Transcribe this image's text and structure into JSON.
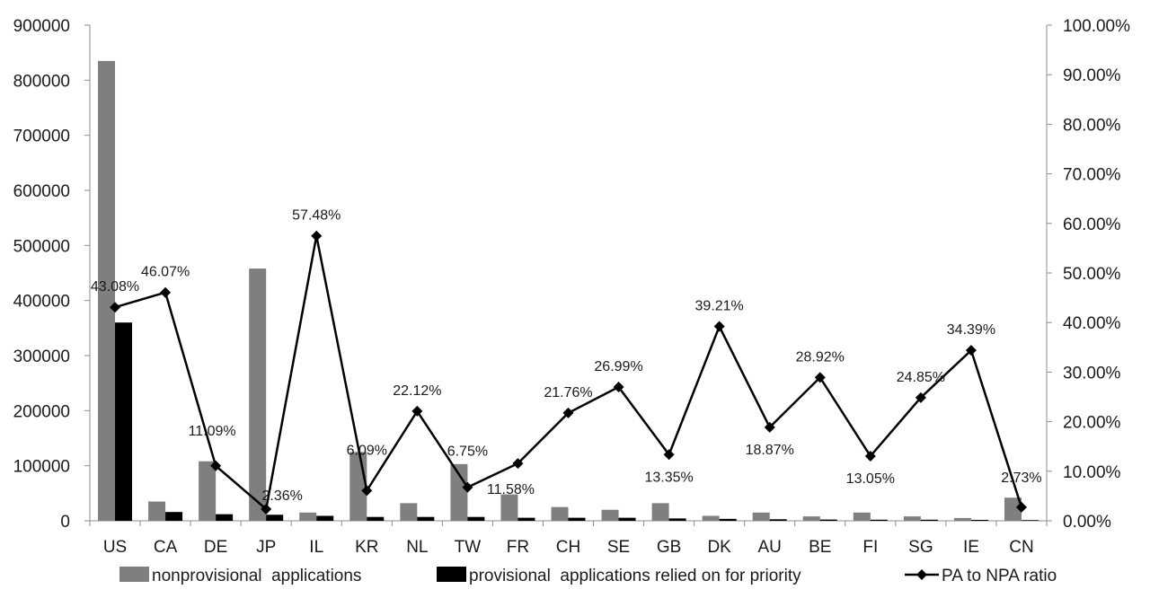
{
  "chart_data": {
    "type": "bar+line",
    "title": "",
    "categories": [
      "US",
      "CA",
      "DE",
      "JP",
      "IL",
      "KR",
      "NL",
      "TW",
      "FR",
      "CH",
      "SE",
      "GB",
      "DK",
      "AU",
      "BE",
      "FI",
      "SG",
      "IE",
      "CN"
    ],
    "series": [
      {
        "name": "nonprovisional applications",
        "type": "bar",
        "axis": "left",
        "color": "#7f7f7f",
        "values": [
          835000,
          35000,
          108000,
          458000,
          15000,
          125000,
          32000,
          103000,
          48000,
          25000,
          20000,
          32000,
          9000,
          15000,
          8000,
          15000,
          8000,
          5000,
          42000
        ]
      },
      {
        "name": "provisional applications relied on for priority",
        "type": "bar",
        "axis": "left",
        "color": "#000000",
        "values": [
          360000,
          16000,
          12000,
          11000,
          9000,
          7000,
          7000,
          7000,
          5500,
          5500,
          5500,
          4300,
          3500,
          2800,
          2300,
          2000,
          2000,
          1700,
          1200
        ]
      },
      {
        "name": "PA to NPA ratio",
        "type": "line",
        "axis": "right",
        "color": "#000000",
        "marker": "diamond",
        "values": [
          43.08,
          46.07,
          11.09,
          2.36,
          57.48,
          6.09,
          22.12,
          6.75,
          11.58,
          21.76,
          26.99,
          13.35,
          39.21,
          18.87,
          28.92,
          13.05,
          24.85,
          34.39,
          2.73
        ],
        "labels": [
          "43.08%",
          "46.07%",
          "11.09%",
          "2.36%",
          "57.48%",
          "6.09%",
          "22.12%",
          "6.75%",
          "11.58%",
          "21.76%",
          "26.99%",
          "13.35%",
          "39.21%",
          "18.87%",
          "28.92%",
          "13.05%",
          "24.85%",
          "34.39%",
          "2.73%"
        ]
      }
    ],
    "y_left": {
      "min": 0,
      "max": 900000,
      "ticks": [
        0,
        100000,
        200000,
        300000,
        400000,
        500000,
        600000,
        700000,
        800000,
        900000
      ],
      "tick_labels": [
        "0",
        "100000",
        "200000",
        "300000",
        "400000",
        "500000",
        "600000",
        "700000",
        "800000",
        "900000"
      ]
    },
    "y_right": {
      "min": 0,
      "max": 100,
      "ticks": [
        0,
        10,
        20,
        30,
        40,
        50,
        60,
        70,
        80,
        90,
        100
      ],
      "tick_labels": [
        "0.00%",
        "10.00%",
        "20.00%",
        "30.00%",
        "40.00%",
        "50.00%",
        "60.00%",
        "70.00%",
        "80.00%",
        "90.00%",
        "100.00%"
      ]
    },
    "grid": false,
    "legend": {
      "position": "bottom",
      "entries": [
        "nonprovisional  applications",
        "provisional  applications relied on for priority",
        "PA to NPA ratio"
      ]
    }
  }
}
